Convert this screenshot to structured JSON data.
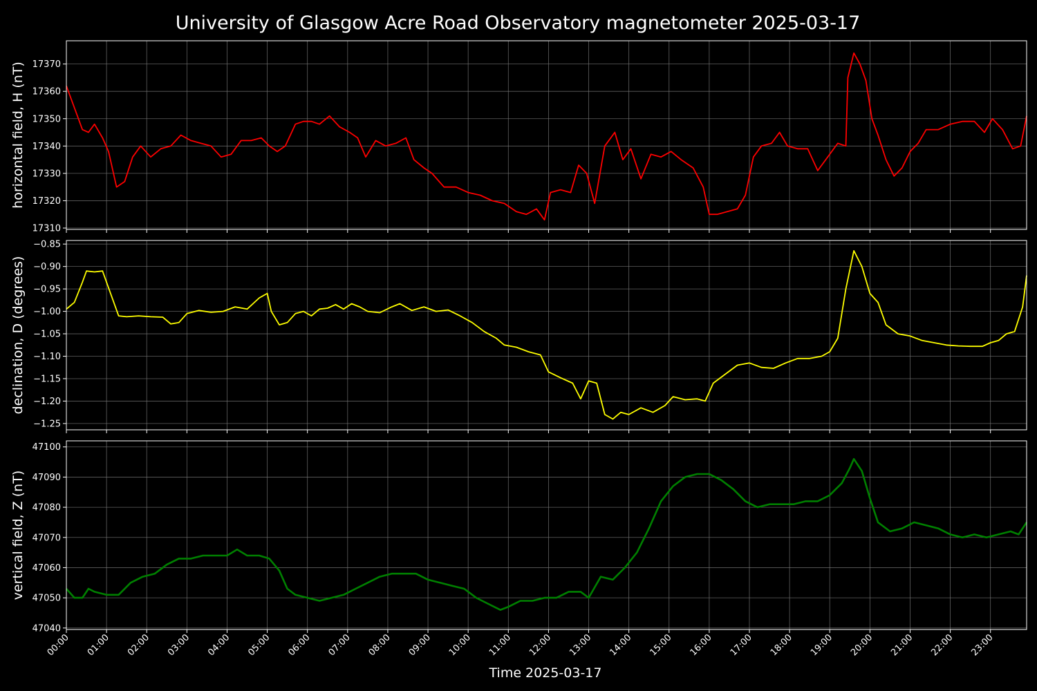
{
  "title": "University of Glasgow Acre Road Observatory magnetometer 2025-03-17",
  "xlabel": "Time 2025-03-17",
  "colors": {
    "background": "#000000",
    "text": "#ffffff",
    "grid": "#7a7a7a"
  },
  "chart_data": [
    {
      "type": "line",
      "ylabel": "horizontal field, H (nT)",
      "color": "#ff0000",
      "ylim": [
        17309.5,
        17378.5
      ],
      "yticks": [
        17310,
        17320,
        17330,
        17340,
        17350,
        17360,
        17370
      ],
      "xlim": [
        0,
        23.9
      ],
      "x_unit": "hours since 00:00",
      "x": [
        0.0,
        0.25,
        0.4,
        0.55,
        0.7,
        0.9,
        1.05,
        1.25,
        1.45,
        1.65,
        1.85,
        2.1,
        2.35,
        2.6,
        2.85,
        3.1,
        3.35,
        3.6,
        3.85,
        4.1,
        4.35,
        4.6,
        4.85,
        5.05,
        5.25,
        5.45,
        5.7,
        5.9,
        6.1,
        6.3,
        6.55,
        6.8,
        7.05,
        7.25,
        7.45,
        7.7,
        7.95,
        8.2,
        8.45,
        8.65,
        8.9,
        9.1,
        9.4,
        9.7,
        10.0,
        10.3,
        10.6,
        10.9,
        11.2,
        11.45,
        11.7,
        11.9,
        12.05,
        12.3,
        12.55,
        12.75,
        12.95,
        13.15,
        13.4,
        13.65,
        13.85,
        14.05,
        14.3,
        14.55,
        14.8,
        15.05,
        15.3,
        15.6,
        15.85,
        16.0,
        16.2,
        16.45,
        16.7,
        16.9,
        17.1,
        17.3,
        17.55,
        17.75,
        17.95,
        18.2,
        18.45,
        18.7,
        18.95,
        19.2,
        19.4,
        19.45,
        19.6,
        19.75,
        19.9,
        20.05,
        20.2,
        20.4,
        20.6,
        20.8,
        21.0,
        21.2,
        21.4,
        21.7,
        22.0,
        22.3,
        22.6,
        22.85,
        23.05,
        23.3,
        23.55,
        23.75,
        23.9
      ],
      "y": [
        17362,
        17352,
        17346,
        17345,
        17348,
        17343,
        17338,
        17325,
        17327,
        17336,
        17340,
        17336,
        17339,
        17340,
        17344,
        17342,
        17341,
        17340,
        17336,
        17337,
        17342,
        17342,
        17343,
        17340,
        17338,
        17340,
        17348,
        17349,
        17349,
        17348,
        17351,
        17347,
        17345,
        17343,
        17336,
        17342,
        17340,
        17341,
        17343,
        17335,
        17332,
        17330,
        17325,
        17325,
        17323,
        17322,
        17320,
        17319,
        17316,
        17315,
        17317,
        17313,
        17323,
        17324,
        17323,
        17333,
        17330,
        17319,
        17340,
        17345,
        17335,
        17339,
        17328,
        17337,
        17336,
        17338,
        17335,
        17332,
        17325,
        17315,
        17315,
        17316,
        17317,
        17322,
        17336,
        17340,
        17341,
        17345,
        17340,
        17339,
        17339,
        17331,
        17336,
        17341,
        17340,
        17365,
        17374,
        17370,
        17364,
        17350,
        17344,
        17335,
        17329,
        17332,
        17338,
        17341,
        17346,
        17346,
        17348,
        17349,
        17349,
        17345,
        17350,
        17346,
        17339,
        17340,
        17351
      ]
    },
    {
      "type": "line",
      "ylabel": "declination, D (degrees)",
      "color": "#ffff00",
      "ylim": [
        -1.264,
        -0.842
      ],
      "yticks": [
        -1.25,
        -1.2,
        -1.15,
        -1.1,
        -1.05,
        -1.0,
        -0.95,
        -0.9,
        -0.85
      ],
      "xlim": [
        0,
        23.9
      ],
      "x_unit": "hours since 00:00",
      "x": [
        0.0,
        0.2,
        0.4,
        0.5,
        0.7,
        0.9,
        1.1,
        1.3,
        1.5,
        1.8,
        2.1,
        2.4,
        2.6,
        2.8,
        3.0,
        3.3,
        3.6,
        3.9,
        4.2,
        4.5,
        4.8,
        5.0,
        5.1,
        5.3,
        5.5,
        5.7,
        5.9,
        6.1,
        6.3,
        6.5,
        6.7,
        6.9,
        7.1,
        7.3,
        7.5,
        7.8,
        8.1,
        8.3,
        8.6,
        8.9,
        9.2,
        9.5,
        9.8,
        10.1,
        10.4,
        10.7,
        10.9,
        11.2,
        11.5,
        11.8,
        12.0,
        12.3,
        12.6,
        12.8,
        13.0,
        13.2,
        13.4,
        13.6,
        13.8,
        14.0,
        14.3,
        14.6,
        14.9,
        15.1,
        15.4,
        15.7,
        15.9,
        16.1,
        16.4,
        16.7,
        17.0,
        17.3,
        17.6,
        17.9,
        18.2,
        18.5,
        18.8,
        19.0,
        19.2,
        19.4,
        19.6,
        19.8,
        20.0,
        20.2,
        20.4,
        20.7,
        21.0,
        21.3,
        21.6,
        21.9,
        22.2,
        22.5,
        22.8,
        23.0,
        23.2,
        23.4,
        23.6,
        23.8,
        23.9
      ],
      "y": [
        -0.995,
        -0.98,
        -0.935,
        -0.91,
        -0.912,
        -0.91,
        -0.96,
        -1.01,
        -1.012,
        -1.01,
        -1.012,
        -1.013,
        -1.028,
        -1.025,
        -1.005,
        -0.998,
        -1.002,
        -1.0,
        -0.99,
        -0.995,
        -0.97,
        -0.96,
        -1.0,
        -1.03,
        -1.025,
        -1.005,
        -1.0,
        -1.01,
        -0.995,
        -0.993,
        -0.985,
        -0.995,
        -0.983,
        -0.99,
        -1.0,
        -1.003,
        -0.99,
        -0.983,
        -0.998,
        -0.99,
        -1.0,
        -0.997,
        -1.01,
        -1.025,
        -1.045,
        -1.06,
        -1.075,
        -1.08,
        -1.09,
        -1.097,
        -1.135,
        -1.148,
        -1.16,
        -1.195,
        -1.155,
        -1.16,
        -1.23,
        -1.24,
        -1.225,
        -1.23,
        -1.215,
        -1.225,
        -1.21,
        -1.19,
        -1.197,
        -1.195,
        -1.2,
        -1.16,
        -1.14,
        -1.12,
        -1.115,
        -1.125,
        -1.127,
        -1.115,
        -1.105,
        -1.105,
        -1.1,
        -1.09,
        -1.06,
        -0.95,
        -0.865,
        -0.9,
        -0.96,
        -0.98,
        -1.03,
        -1.05,
        -1.055,
        -1.065,
        -1.07,
        -1.075,
        -1.077,
        -1.078,
        -1.078,
        -1.07,
        -1.065,
        -1.05,
        -1.045,
        -0.99,
        -0.92
      ]
    },
    {
      "type": "line",
      "ylabel": "vertical field, Z (nT)",
      "color": "#008000",
      "ylim": [
        47039.5,
        47102
      ],
      "yticks": [
        47040,
        47050,
        47060,
        47070,
        47080,
        47090,
        47100
      ],
      "xlim": [
        0,
        23.9
      ],
      "x_unit": "hours since 00:00",
      "x": [
        0.0,
        0.2,
        0.4,
        0.55,
        0.7,
        1.0,
        1.3,
        1.6,
        1.9,
        2.2,
        2.5,
        2.8,
        3.1,
        3.4,
        3.7,
        4.0,
        4.25,
        4.5,
        4.8,
        5.05,
        5.3,
        5.5,
        5.7,
        6.0,
        6.3,
        6.6,
        6.9,
        7.2,
        7.5,
        7.8,
        8.1,
        8.4,
        8.7,
        9.0,
        9.3,
        9.6,
        9.9,
        10.2,
        10.5,
        10.8,
        11.0,
        11.3,
        11.6,
        11.9,
        12.2,
        12.5,
        12.8,
        13.0,
        13.3,
        13.6,
        13.9,
        14.2,
        14.5,
        14.8,
        15.1,
        15.4,
        15.7,
        16.0,
        16.3,
        16.6,
        16.9,
        17.2,
        17.5,
        17.8,
        18.1,
        18.4,
        18.7,
        19.0,
        19.3,
        19.5,
        19.6,
        19.8,
        20.0,
        20.2,
        20.5,
        20.8,
        21.1,
        21.4,
        21.7,
        22.0,
        22.3,
        22.6,
        22.9,
        23.2,
        23.5,
        23.7,
        23.9
      ],
      "y": [
        47053,
        47050,
        47050,
        47053,
        47052,
        47051,
        47051,
        47055,
        47057,
        47058,
        47061,
        47063,
        47063,
        47064,
        47064,
        47064,
        47066,
        47064,
        47064,
        47063,
        47059,
        47053,
        47051,
        47050,
        47049,
        47050,
        47051,
        47053,
        47055,
        47057,
        47058,
        47058,
        47058,
        47056,
        47055,
        47054,
        47053,
        47050,
        47048,
        47046,
        47047,
        47049,
        47049,
        47050,
        47050,
        47052,
        47052,
        47050,
        47057,
        47056,
        47060,
        47065,
        47073,
        47082,
        47087,
        47090,
        47091,
        47091,
        47089,
        47086,
        47082,
        47080,
        47081,
        47081,
        47081,
        47082,
        47082,
        47084,
        47088,
        47093,
        47096,
        47092,
        47083,
        47075,
        47072,
        47073,
        47075,
        47074,
        47073,
        47071,
        47070,
        47071,
        47070,
        47071,
        47072,
        47071,
        47075
      ]
    }
  ],
  "x_ticks": [
    "00:00",
    "01:00",
    "02:00",
    "03:00",
    "04:00",
    "05:00",
    "06:00",
    "07:00",
    "08:00",
    "09:00",
    "10:00",
    "11:00",
    "12:00",
    "13:00",
    "14:00",
    "15:00",
    "16:00",
    "17:00",
    "18:00",
    "19:00",
    "20:00",
    "21:00",
    "22:00",
    "23:00"
  ]
}
